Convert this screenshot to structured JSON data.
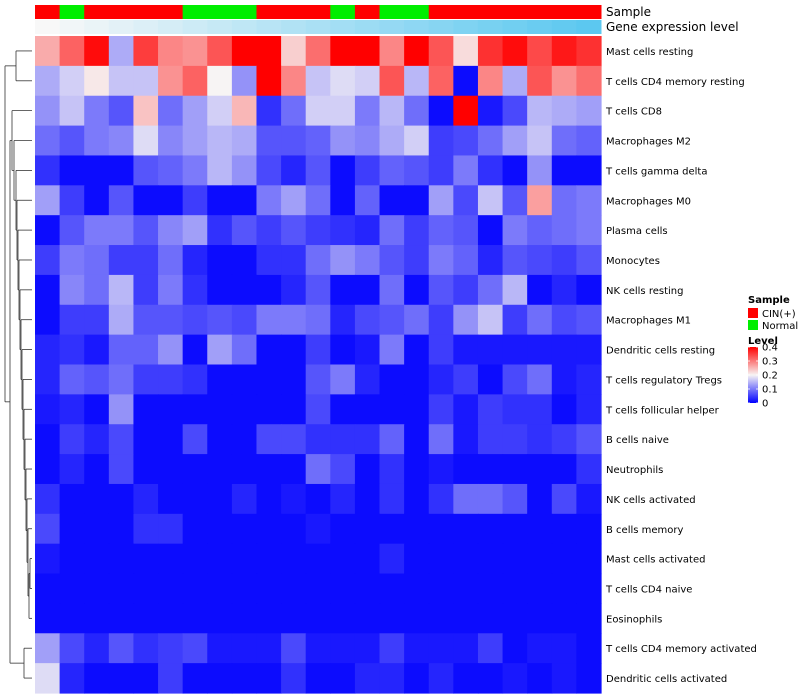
{
  "chart_data": {
    "type": "heatmap",
    "title": "",
    "annotation_tracks": [
      {
        "name": "Sample",
        "label": "Sample",
        "values": [
          "CIN(+)",
          "Normal",
          "CIN(+)",
          "CIN(+)",
          "CIN(+)",
          "CIN(+)",
          "Normal",
          "Normal",
          "Normal",
          "CIN(+)",
          "CIN(+)",
          "CIN(+)",
          "Normal",
          "CIN(+)",
          "Normal",
          "Normal",
          "CIN(+)",
          "CIN(+)",
          "CIN(+)",
          "CIN(+)",
          "CIN(+)",
          "CIN(+)",
          "CIN(+)"
        ]
      },
      {
        "name": "Gene expression level",
        "label": "Gene expression level",
        "values": [
          0.02,
          0.04,
          0.06,
          0.08,
          0.1,
          0.12,
          0.14,
          0.16,
          0.18,
          0.2,
          0.22,
          0.24,
          0.26,
          0.28,
          0.3,
          0.32,
          0.34,
          0.36,
          0.38,
          0.4,
          0.42,
          0.44,
          0.46
        ]
      }
    ],
    "legend": {
      "sample_title": "Sample",
      "sample_entries": [
        {
          "label": "CIN(+)",
          "color": "#ff0000"
        },
        {
          "label": "Normal",
          "color": "#00ee00"
        }
      ],
      "level_title": "Level",
      "level_ticks": [
        "0.4",
        "0.3",
        "0.2",
        "0.1",
        "0"
      ],
      "level_tick_values": [
        0.4,
        0.3,
        0.2,
        0.1,
        0
      ],
      "position": "right"
    },
    "color_scale": {
      "min": 0,
      "mid": 0.2,
      "max": 0.4,
      "low": "#0000ff",
      "mid_color": "#f7f4f4",
      "high": "#ff0000"
    },
    "rows": [
      "Mast cells resting",
      "T cells CD4 memory resting",
      "T cells CD8",
      "Macrophages M2",
      "T cells gamma delta",
      "Macrophages M0",
      "Plasma cells",
      "Monocytes",
      "NK cells resting",
      "Macrophages M1",
      "Dendritic cells resting",
      "T cells regulatory  Tregs",
      "T cells follicular helper",
      "B cells naive",
      "Neutrophils",
      "NK cells activated",
      "B cells memory",
      "Mast cells activated",
      "T cells CD4 naive",
      "Eosinophils",
      "T cells CD4 memory activated",
      "Dendritic cells activated"
    ],
    "values": [
      [
        0.26,
        0.32,
        0.39,
        0.14,
        0.35,
        0.29,
        0.28,
        0.33,
        0.4,
        0.4,
        0.23,
        0.31,
        0.4,
        0.4,
        0.29,
        0.4,
        0.33,
        0.22,
        0.36,
        0.39,
        0.34,
        0.38,
        0.36
      ],
      [
        0.14,
        0.17,
        0.21,
        0.16,
        0.16,
        0.28,
        0.32,
        0.2,
        0.12,
        0.4,
        0.29,
        0.16,
        0.18,
        0.17,
        0.33,
        0.15,
        0.32,
        0.01,
        0.29,
        0.14,
        0.33,
        0.28,
        0.31
      ],
      [
        0.12,
        0.16,
        0.1,
        0.07,
        0.24,
        0.09,
        0.13,
        0.17,
        0.25,
        0.04,
        0.09,
        0.17,
        0.17,
        0.1,
        0.15,
        0.09,
        0.01,
        0.4,
        0.02,
        0.06,
        0.15,
        0.14,
        0.13
      ],
      [
        0.09,
        0.07,
        0.1,
        0.11,
        0.18,
        0.11,
        0.13,
        0.15,
        0.14,
        0.07,
        0.07,
        0.08,
        0.12,
        0.11,
        0.14,
        0.17,
        0.05,
        0.06,
        0.09,
        0.13,
        0.16,
        0.09,
        0.08
      ],
      [
        0.04,
        0.01,
        0.01,
        0.01,
        0.07,
        0.08,
        0.1,
        0.15,
        0.12,
        0.06,
        0.03,
        0.07,
        0.01,
        0.05,
        0.08,
        0.07,
        0.05,
        0.1,
        0.04,
        0.01,
        0.12,
        0.01,
        0.01
      ],
      [
        0.13,
        0.05,
        0.01,
        0.07,
        0.01,
        0.01,
        0.05,
        0.01,
        0.01,
        0.1,
        0.13,
        0.09,
        0.01,
        0.08,
        0.01,
        0.01,
        0.13,
        0.06,
        0.16,
        0.07,
        0.27,
        0.09,
        0.1
      ],
      [
        0.01,
        0.07,
        0.1,
        0.1,
        0.07,
        0.11,
        0.13,
        0.04,
        0.07,
        0.05,
        0.07,
        0.05,
        0.04,
        0.03,
        0.09,
        0.05,
        0.08,
        0.07,
        0.01,
        0.1,
        0.08,
        0.09,
        0.1
      ],
      [
        0.05,
        0.1,
        0.09,
        0.05,
        0.05,
        0.09,
        0.03,
        0.01,
        0.01,
        0.04,
        0.04,
        0.09,
        0.12,
        0.1,
        0.07,
        0.05,
        0.1,
        0.08,
        0.03,
        0.07,
        0.06,
        0.05,
        0.07
      ],
      [
        0.01,
        0.11,
        0.09,
        0.15,
        0.05,
        0.1,
        0.04,
        0.01,
        0.01,
        0.01,
        0.03,
        0.07,
        0.01,
        0.01,
        0.09,
        0.01,
        0.07,
        0.05,
        0.09,
        0.15,
        0.01,
        0.03,
        0.01
      ],
      [
        0.01,
        0.05,
        0.05,
        0.14,
        0.07,
        0.07,
        0.06,
        0.07,
        0.06,
        0.1,
        0.1,
        0.09,
        0.03,
        0.06,
        0.07,
        0.09,
        0.05,
        0.12,
        0.16,
        0.05,
        0.09,
        0.06,
        0.07
      ],
      [
        0.03,
        0.04,
        0.02,
        0.08,
        0.08,
        0.12,
        0.01,
        0.13,
        0.09,
        0.01,
        0.01,
        0.05,
        0.01,
        0.02,
        0.1,
        0.01,
        0.05,
        0.02,
        0.02,
        0.02,
        0.02,
        0.02,
        0.02
      ],
      [
        0.03,
        0.08,
        0.07,
        0.09,
        0.05,
        0.05,
        0.04,
        0.01,
        0.01,
        0.01,
        0.01,
        0.07,
        0.1,
        0.03,
        0.01,
        0.01,
        0.03,
        0.05,
        0.01,
        0.06,
        0.09,
        0.02,
        0.03
      ],
      [
        0.02,
        0.03,
        0.01,
        0.12,
        0.01,
        0.01,
        0.01,
        0.01,
        0.01,
        0.01,
        0.01,
        0.06,
        0.01,
        0.01,
        0.01,
        0.01,
        0.05,
        0.02,
        0.05,
        0.04,
        0.04,
        0.01,
        0.03
      ],
      [
        0.01,
        0.05,
        0.03,
        0.06,
        0.01,
        0.01,
        0.06,
        0.01,
        0.01,
        0.06,
        0.06,
        0.04,
        0.04,
        0.04,
        0.08,
        0.01,
        0.09,
        0.02,
        0.05,
        0.05,
        0.04,
        0.05,
        0.07
      ],
      [
        0.01,
        0.03,
        0.01,
        0.06,
        0.01,
        0.01,
        0.01,
        0.01,
        0.01,
        0.01,
        0.01,
        0.09,
        0.06,
        0.01,
        0.04,
        0.01,
        0.02,
        0.01,
        0.01,
        0.01,
        0.01,
        0.01,
        0.04
      ],
      [
        0.04,
        0.01,
        0.01,
        0.01,
        0.03,
        0.01,
        0.01,
        0.01,
        0.03,
        0.01,
        0.02,
        0.01,
        0.03,
        0.01,
        0.04,
        0.01,
        0.04,
        0.09,
        0.09,
        0.07,
        0.01,
        0.06,
        0.02
      ],
      [
        0.06,
        0.01,
        0.01,
        0.01,
        0.04,
        0.04,
        0.01,
        0.01,
        0.01,
        0.01,
        0.01,
        0.02,
        0.01,
        0.01,
        0.01,
        0.01,
        0.01,
        0.01,
        0.01,
        0.01,
        0.01,
        0.01,
        0.01
      ],
      [
        0.02,
        0.01,
        0.01,
        0.01,
        0.01,
        0.01,
        0.01,
        0.01,
        0.01,
        0.01,
        0.01,
        0.01,
        0.01,
        0.01,
        0.03,
        0.01,
        0.01,
        0.01,
        0.01,
        0.01,
        0.01,
        0.01,
        0.01
      ],
      [
        0.01,
        0.01,
        0.01,
        0.01,
        0.01,
        0.01,
        0.01,
        0.01,
        0.01,
        0.01,
        0.01,
        0.01,
        0.01,
        0.01,
        0.01,
        0.01,
        0.01,
        0.01,
        0.01,
        0.01,
        0.01,
        0.01,
        0.01
      ],
      [
        0.01,
        0.01,
        0.01,
        0.01,
        0.01,
        0.01,
        0.01,
        0.01,
        0.01,
        0.01,
        0.01,
        0.01,
        0.01,
        0.01,
        0.01,
        0.01,
        0.01,
        0.01,
        0.01,
        0.01,
        0.01,
        0.01,
        0.01
      ],
      [
        0.13,
        0.06,
        0.03,
        0.07,
        0.04,
        0.05,
        0.06,
        0.02,
        0.02,
        0.02,
        0.06,
        0.02,
        0.02,
        0.02,
        0.05,
        0.02,
        0.02,
        0.02,
        0.05,
        0.01,
        0.02,
        0.02,
        0.01
      ],
      [
        0.18,
        0.03,
        0.01,
        0.01,
        0.01,
        0.05,
        0.01,
        0.01,
        0.01,
        0.01,
        0.04,
        0.01,
        0.01,
        0.03,
        0.03,
        0.01,
        0.03,
        0.01,
        0.01,
        0.02,
        0.01,
        0.02,
        0.01
      ]
    ]
  }
}
